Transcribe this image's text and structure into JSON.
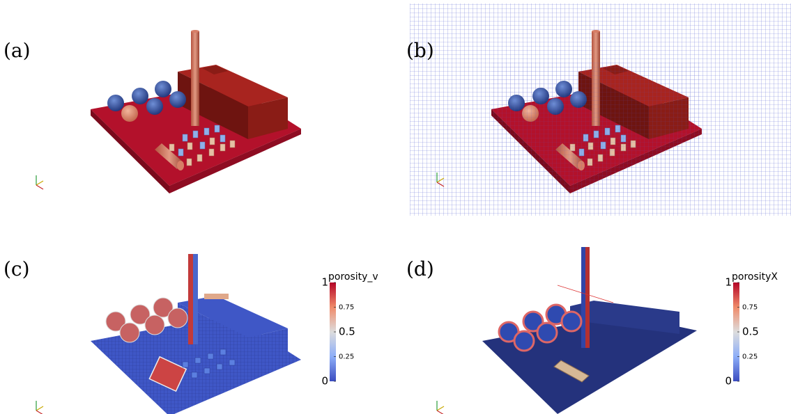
{
  "panels": [
    {
      "label": "(a)"
    },
    {
      "label": "(b)"
    },
    {
      "label": "(c)",
      "colorbar": {
        "title": "porosity_v",
        "ticks": [
          1,
          0.75,
          0.5,
          0.25,
          0
        ],
        "range": [
          0,
          1
        ]
      }
    },
    {
      "label": "(d)",
      "colorbar": {
        "title": "porosityX",
        "ticks": [
          1,
          0.75,
          0.5,
          0.25,
          0
        ],
        "range": [
          0,
          1
        ]
      }
    }
  ]
}
